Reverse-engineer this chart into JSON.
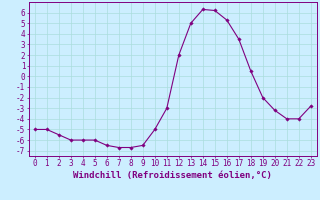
{
  "xlabel": "Windchill (Refroidissement éolien,°C)",
  "x": [
    0,
    1,
    2,
    3,
    4,
    5,
    6,
    7,
    8,
    9,
    10,
    11,
    12,
    13,
    14,
    15,
    16,
    17,
    18,
    19,
    20,
    21,
    22,
    23
  ],
  "y": [
    -5.0,
    -5.0,
    -5.5,
    -6.0,
    -6.0,
    -6.0,
    -6.5,
    -6.7,
    -6.7,
    -6.5,
    -5.0,
    -3.0,
    2.0,
    5.0,
    6.3,
    6.2,
    5.3,
    3.5,
    0.5,
    -2.0,
    -3.2,
    -4.0,
    -4.0,
    -2.8
  ],
  "line_color": "#800080",
  "marker": "D",
  "marker_size": 1.8,
  "bg_color": "#cceeff",
  "grid_color": "#aadddd",
  "xlim": [
    -0.5,
    23.5
  ],
  "ylim": [
    -7.5,
    7.0
  ],
  "yticks": [
    -7,
    -6,
    -5,
    -4,
    -3,
    -2,
    -1,
    0,
    1,
    2,
    3,
    4,
    5,
    6
  ],
  "xticks": [
    0,
    1,
    2,
    3,
    4,
    5,
    6,
    7,
    8,
    9,
    10,
    11,
    12,
    13,
    14,
    15,
    16,
    17,
    18,
    19,
    20,
    21,
    22,
    23
  ],
  "tick_color": "#800080",
  "label_fontsize": 5.5,
  "axis_label_fontsize": 6.5
}
